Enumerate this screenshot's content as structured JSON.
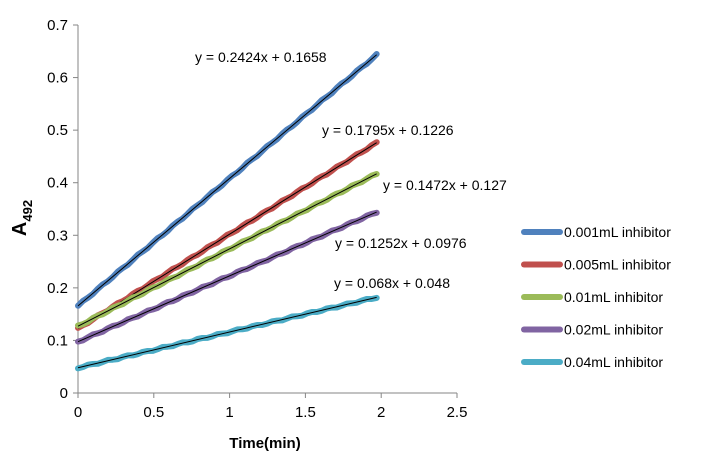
{
  "chart_data": {
    "type": "line",
    "xlabel": "Time(min)",
    "ylabel_main": "A",
    "ylabel_sub": "492",
    "xlim": [
      0,
      2.5
    ],
    "ylim": [
      0,
      0.7
    ],
    "x_ticks": [
      0,
      0.5,
      1,
      1.5,
      2,
      2.5
    ],
    "x_tick_labels": [
      "0",
      "0.5",
      "1",
      "1.5",
      "2",
      "2.5"
    ],
    "y_ticks": [
      0,
      0.1,
      0.2,
      0.3,
      0.4,
      0.5,
      0.6,
      0.7
    ],
    "y_tick_labels": [
      "0",
      "0.1",
      "0.2",
      "0.3",
      "0.4",
      "0.5",
      "0.6",
      "0.7"
    ],
    "grid": false,
    "legend_position": "right",
    "x_range": [
      0,
      1.97
    ],
    "series": [
      {
        "name": "0.001mL inhibitor",
        "color": "#4f81bd",
        "slope": 0.2424,
        "intercept": 0.1658,
        "equation": "y = 0.2424x + 0.1658"
      },
      {
        "name": "0.005mL inhibitor",
        "color": "#c0504d",
        "slope": 0.1795,
        "intercept": 0.1226,
        "equation": "y = 0.1795x + 0.1226"
      },
      {
        "name": "0.01mL inhibitor",
        "color": "#9bbb59",
        "slope": 0.1472,
        "intercept": 0.127,
        "equation": "y = 0.1472x + 0.127"
      },
      {
        "name": "0.02mL inhibitor",
        "color": "#8064a2",
        "slope": 0.1252,
        "intercept": 0.0976,
        "equation": "y = 0.1252x + 0.0976"
      },
      {
        "name": "0.04mL inhibitor",
        "color": "#4bacc6",
        "slope": 0.068,
        "intercept": 0.048,
        "equation": "y = 0.068x + 0.048"
      }
    ]
  }
}
